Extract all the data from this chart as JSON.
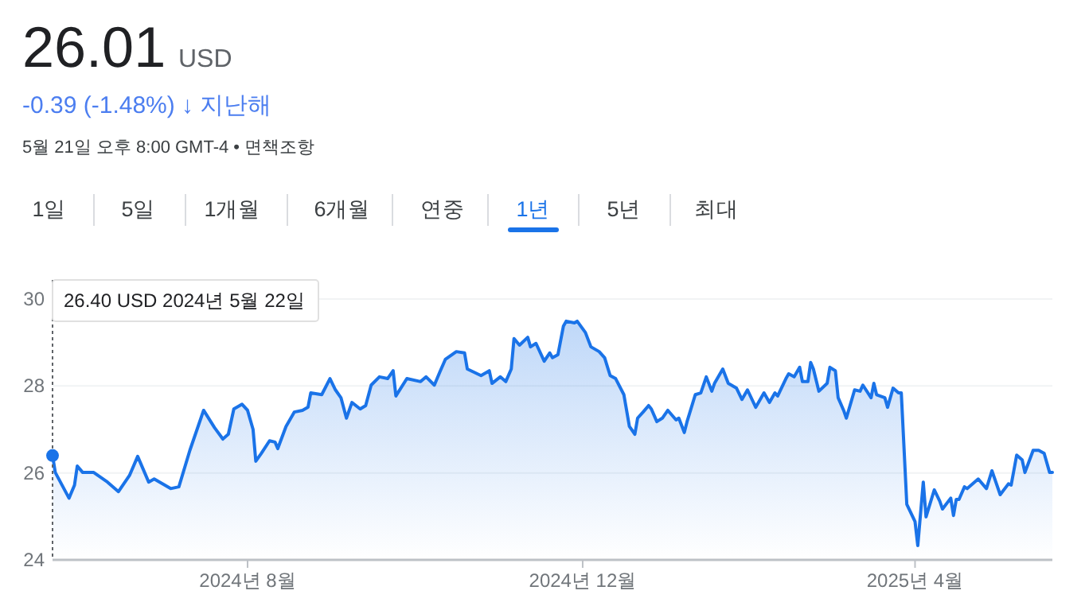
{
  "chart_data": {
    "type": "area",
    "title": "26.01",
    "subtitle": "5월 21일 오후 8:00 GMT-4 • 면책조항",
    "annotations": [
      "USD",
      "-0.39 (-1.48%) ↓ 지난해",
      "1일",
      "5일",
      "1개월",
      "6개월",
      "연중",
      "1년",
      "5년",
      "최대",
      "26.40 USD  2024년 5월 22일"
    ],
    "x": [
      "2024-05-22",
      "2024-05-23",
      "2024-05-28",
      "2024-05-30",
      "2024-05-31",
      "2024-06-02",
      "2024-06-06",
      "2024-06-11",
      "2024-06-15",
      "2024-06-19",
      "2024-06-22",
      "2024-06-26",
      "2024-06-28",
      "2024-07-01",
      "2024-07-04",
      "2024-07-07",
      "2024-07-11",
      "2024-07-16",
      "2024-07-20",
      "2024-07-23",
      "2024-07-25",
      "2024-07-27",
      "2024-07-30",
      "2024-08-01",
      "2024-08-03",
      "2024-08-04",
      "2024-08-06",
      "2024-08-09",
      "2024-08-11",
      "2024-08-12",
      "2024-08-15",
      "2024-08-18",
      "2024-08-21",
      "2024-08-23",
      "2024-08-24",
      "2024-08-28",
      "2024-08-31",
      "2024-09-02",
      "2024-09-04",
      "2024-09-06",
      "2024-09-08",
      "2024-09-11",
      "2024-09-13",
      "2024-09-15",
      "2024-09-18",
      "2024-09-21",
      "2024-09-23",
      "2024-09-24",
      "2024-09-28",
      "2024-10-03",
      "2024-10-05",
      "2024-10-08",
      "2024-10-10",
      "2024-10-12",
      "2024-10-16",
      "2024-10-19",
      "2024-10-20",
      "2024-10-25",
      "2024-10-28",
      "2024-10-29",
      "2024-11-01",
      "2024-11-03",
      "2024-11-05",
      "2024-11-06",
      "2024-11-08",
      "2024-11-11",
      "2024-11-12",
      "2024-11-14",
      "2024-11-17",
      "2024-11-19",
      "2024-11-20",
      "2024-11-22",
      "2024-11-24",
      "2024-11-25",
      "2024-11-28",
      "2024-11-29",
      "2024-12-02",
      "2024-12-04",
      "2024-12-07",
      "2024-12-09",
      "2024-12-11",
      "2024-12-13",
      "2024-12-16",
      "2024-12-18",
      "2024-12-20",
      "2024-12-21",
      "2024-12-23",
      "2024-12-25",
      "2024-12-26",
      "2024-12-28",
      "2024-12-30",
      "2025-01-01",
      "2025-01-04",
      "2025-01-05",
      "2025-01-07",
      "2025-01-08",
      "2025-01-11",
      "2025-01-13",
      "2025-01-15",
      "2025-01-17",
      "2025-01-18",
      "2025-01-21",
      "2025-01-23",
      "2025-01-26",
      "2025-01-28",
      "2025-01-30",
      "2025-02-02",
      "2025-02-05",
      "2025-02-07",
      "2025-02-09",
      "2025-02-10",
      "2025-02-13",
      "2025-02-14",
      "2025-02-16",
      "2025-02-18",
      "2025-02-19",
      "2025-02-21",
      "2025-02-22",
      "2025-02-23",
      "2025-02-25",
      "2025-02-28",
      "2025-03-01",
      "2025-03-03",
      "2025-03-04",
      "2025-03-06",
      "2025-03-07",
      "2025-03-10",
      "2025-03-12",
      "2025-03-13",
      "2025-03-16",
      "2025-03-17",
      "2025-03-18",
      "2025-03-21",
      "2025-03-22",
      "2025-03-24",
      "2025-03-26",
      "2025-03-27",
      "2025-03-29",
      "2025-04-01",
      "2025-04-02",
      "2025-04-04",
      "2025-04-05",
      "2025-04-08",
      "2025-04-10",
      "2025-04-11",
      "2025-04-14",
      "2025-04-15",
      "2025-04-16",
      "2025-04-17",
      "2025-04-19",
      "2025-04-20",
      "2025-04-24",
      "2025-04-27",
      "2025-04-29",
      "2025-05-02",
      "2025-05-05",
      "2025-05-06",
      "2025-05-08",
      "2025-05-10",
      "2025-05-11",
      "2025-05-14",
      "2025-05-16",
      "2025-05-18",
      "2025-05-20",
      "2025-05-21"
    ],
    "series": [
      {
        "color": "#1a73e8",
        "values": [
          26.4,
          26.01,
          25.42,
          25.72,
          26.16,
          26.01,
          26.01,
          25.79,
          25.57,
          25.94,
          26.38,
          25.79,
          25.86,
          25.75,
          25.64,
          25.68,
          26.52,
          27.44,
          27.04,
          26.78,
          26.89,
          27.47,
          27.58,
          27.44,
          27.0,
          26.27,
          26.45,
          26.74,
          26.71,
          26.56,
          27.07,
          27.4,
          27.44,
          27.51,
          27.84,
          27.8,
          28.17,
          27.91,
          27.73,
          27.26,
          27.62,
          27.47,
          27.55,
          28.02,
          28.21,
          28.17,
          28.35,
          27.77,
          28.17,
          28.1,
          28.21,
          28.02,
          28.32,
          28.61,
          28.79,
          28.76,
          28.39,
          28.24,
          28.35,
          28.06,
          28.21,
          28.1,
          28.39,
          29.09,
          28.94,
          29.12,
          28.9,
          28.98,
          28.57,
          28.76,
          28.65,
          28.72,
          29.38,
          29.49,
          29.45,
          29.49,
          29.23,
          28.9,
          28.79,
          28.65,
          28.24,
          28.17,
          27.8,
          27.07,
          26.89,
          27.26,
          27.4,
          27.55,
          27.47,
          27.18,
          27.26,
          27.44,
          27.22,
          27.26,
          26.93,
          27.18,
          27.8,
          27.84,
          28.21,
          27.88,
          28.06,
          28.39,
          28.06,
          27.95,
          27.69,
          27.91,
          27.51,
          27.84,
          27.62,
          27.84,
          27.77,
          28.17,
          28.28,
          28.21,
          28.43,
          28.1,
          28.1,
          28.54,
          28.39,
          27.88,
          28.06,
          28.43,
          28.35,
          27.73,
          27.44,
          27.26,
          27.91,
          27.88,
          28.02,
          27.73,
          28.06,
          27.8,
          27.73,
          27.51,
          27.95,
          27.84,
          27.84,
          25.28,
          24.88,
          24.33,
          25.79,
          24.99,
          25.61,
          25.35,
          25.17,
          25.42,
          25.02,
          25.39,
          25.39,
          25.68,
          25.64,
          25.86,
          25.64,
          26.05,
          25.5,
          25.75,
          25.72,
          26.41,
          26.3,
          26.01,
          26.52,
          26.52,
          26.45,
          26.01,
          26.01
        ]
      }
    ],
    "xlim": [
      "2024-05-22",
      "2025-05-21"
    ],
    "xticks": [
      {
        "value": "2024-08-01",
        "label": "2024년 8월"
      },
      {
        "value": "2024-12-01",
        "label": "2024년 12월"
      },
      {
        "value": "2025-04-01",
        "label": "2025년 4월"
      }
    ],
    "ylim": [
      24,
      30
    ],
    "yticks": [
      24,
      26,
      28,
      30
    ],
    "grid": "y",
    "ref_lines": [
      {
        "axis": "x",
        "value": "2024-05-22",
        "line_style": "dotted",
        "color": "#5f6368"
      }
    ]
  }
}
